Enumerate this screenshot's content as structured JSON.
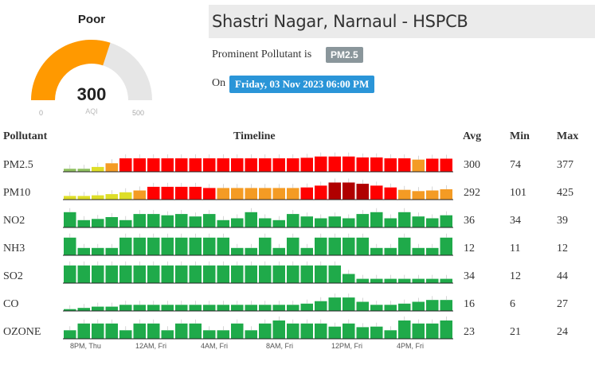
{
  "gauge": {
    "status": "Poor",
    "value": "300",
    "unit": "AQI",
    "min_label": "0",
    "max_label": "500",
    "min": 0,
    "max": 500,
    "level": 300,
    "fill_color": "#ff9900",
    "track_color": "#e6e6e6"
  },
  "station": {
    "title": "Shastri Nagar, Narnaul - HSPCB"
  },
  "prominent": {
    "label": "Prominent Pollutant is",
    "value": "PM2.5"
  },
  "date": {
    "label": "On",
    "value": "Friday, 03 Nov 2023 06:00 PM"
  },
  "table": {
    "headers": {
      "pollutant": "Pollutant",
      "timeline": "Timeline",
      "avg": "Avg",
      "min": "Min",
      "max": "Max"
    },
    "rows": [
      {
        "name": "PM2.5",
        "avg": "300",
        "min": "74",
        "max": "377",
        "bars": [
          10,
          10,
          16,
          28,
          44,
          44,
          44,
          44,
          44,
          44,
          44,
          44,
          44,
          44,
          44,
          44,
          44,
          46,
          50,
          50,
          50,
          47,
          47,
          44,
          44,
          40,
          43,
          43
        ],
        "colors": [
          "#8fc060",
          "#8fc060",
          "#dede28",
          "#f49b24",
          "#f00",
          "#f00",
          "#f00",
          "#f00",
          "#f00",
          "#f00",
          "#f00",
          "#f00",
          "#f00",
          "#f00",
          "#f00",
          "#f00",
          "#f00",
          "#f00",
          "#f00",
          "#f00",
          "#f00",
          "#f00",
          "#f00",
          "#f00",
          "#f00",
          "#f49b24",
          "#f00",
          "#f00"
        ]
      },
      {
        "name": "PM10",
        "avg": "292",
        "min": "101",
        "max": "425",
        "bars": [
          12,
          12,
          14,
          18,
          24,
          30,
          42,
          42,
          42,
          42,
          38,
          38,
          38,
          38,
          38,
          38,
          38,
          40,
          46,
          56,
          56,
          52,
          46,
          40,
          32,
          28,
          30,
          34
        ],
        "colors": [
          "#dede28",
          "#dede28",
          "#dede28",
          "#dede28",
          "#dede28",
          "#f49b24",
          "#f00",
          "#f00",
          "#f00",
          "#f00",
          "#f00",
          "#f49b24",
          "#f49b24",
          "#f49b24",
          "#f49b24",
          "#f49b24",
          "#f49b24",
          "#f00",
          "#f00",
          "#b00000",
          "#b00000",
          "#b00000",
          "#f00",
          "#f00",
          "#f49b24",
          "#f49b24",
          "#f49b24",
          "#f49b24"
        ]
      },
      {
        "name": "NO2",
        "avg": "36",
        "min": "34",
        "max": "39",
        "bars": [
          50,
          24,
          28,
          34,
          24,
          44,
          44,
          40,
          44,
          36,
          44,
          24,
          30,
          50,
          30,
          24,
          44,
          36,
          30,
          36,
          30,
          44,
          50,
          30,
          50,
          36,
          30,
          40
        ],
        "colors": [
          "#1faa4a"
        ]
      },
      {
        "name": "NH3",
        "avg": "12",
        "min": "11",
        "max": "12",
        "bars": [
          58,
          24,
          24,
          24,
          58,
          58,
          58,
          58,
          58,
          58,
          58,
          58,
          24,
          24,
          58,
          24,
          58,
          24,
          58,
          58,
          58,
          58,
          24,
          24,
          58,
          24,
          24,
          58
        ],
        "colors": [
          "#1faa4a"
        ]
      },
      {
        "name": "SO2",
        "avg": "34",
        "min": "12",
        "max": "44",
        "bars": [
          58,
          58,
          58,
          58,
          58,
          58,
          58,
          58,
          58,
          58,
          58,
          58,
          58,
          58,
          58,
          58,
          58,
          58,
          58,
          58,
          30,
          14,
          14,
          14,
          14,
          14,
          14,
          14
        ],
        "colors": [
          "#1faa4a"
        ]
      },
      {
        "name": "CO",
        "avg": "16",
        "min": "6",
        "max": "27",
        "bars": [
          6,
          10,
          14,
          14,
          20,
          20,
          20,
          20,
          20,
          20,
          20,
          20,
          20,
          20,
          20,
          20,
          20,
          24,
          32,
          44,
          44,
          30,
          20,
          20,
          24,
          30,
          36,
          36
        ],
        "colors": [
          "#1faa4a"
        ]
      },
      {
        "name": "OZONE",
        "avg": "23",
        "min": "21",
        "max": "24",
        "bars": [
          28,
          50,
          50,
          50,
          28,
          50,
          50,
          28,
          50,
          50,
          28,
          28,
          50,
          28,
          50,
          60,
          50,
          50,
          50,
          40,
          50,
          38,
          40,
          28,
          60,
          50,
          50,
          60
        ],
        "colors": [
          "#1faa4a"
        ]
      }
    ],
    "time_ticks": [
      "8PM, Thu",
      "12AM, Fri",
      "4AM, Fri",
      "8AM, Fri",
      "12PM, Fri",
      "4PM, Fri"
    ]
  }
}
